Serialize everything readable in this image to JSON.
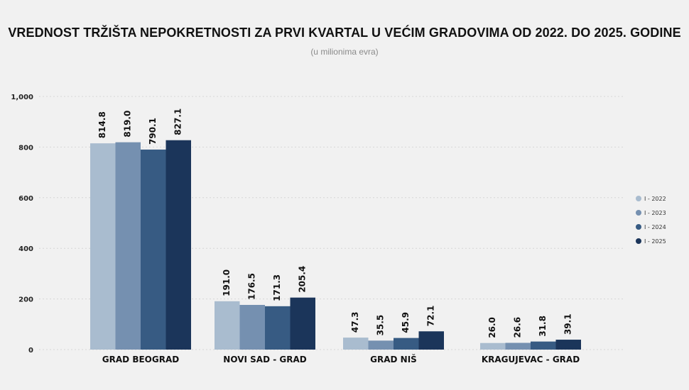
{
  "chart_data": {
    "type": "bar",
    "title": "VREDNOST TRŽIŠTA NEPOKRETNOSTI ZA PRVI KVARTAL U VEĆIM GRADOVIMA OD 2022. DO 2025. GODINE",
    "subtitle": "(u milionima evra)",
    "categories": [
      "GRAD BEOGRAD",
      "NOVI SAD - GRAD",
      "GRAD NIŠ",
      "KRAGUJEVAC - GRAD"
    ],
    "series": [
      {
        "name": "I - 2022",
        "color": "#a9bccf",
        "values": [
          814.8,
          191.0,
          47.3,
          26.0
        ],
        "labels": [
          "814.8",
          "191.0",
          "47.3",
          "26.0"
        ]
      },
      {
        "name": "I - 2023",
        "color": "#7590b0",
        "values": [
          819.0,
          176.5,
          35.5,
          26.6
        ],
        "labels": [
          "819.0",
          "176.5",
          "35.5",
          "26.6"
        ]
      },
      {
        "name": "I - 2024",
        "color": "#375b83",
        "values": [
          790.1,
          171.3,
          45.9,
          31.8
        ],
        "labels": [
          "790.1",
          "171.3",
          "45.9",
          "31.8"
        ]
      },
      {
        "name": "I - 2025",
        "color": "#1b355a",
        "values": [
          827.1,
          205.4,
          72.1,
          39.1
        ],
        "labels": [
          "827.1",
          "205.4",
          "72.1",
          "39.1"
        ]
      }
    ],
    "ylim": [
      0,
      1000
    ],
    "yticks": [
      "0",
      "200",
      "400",
      "600",
      "800",
      "1,000"
    ],
    "ytick_values": [
      0,
      200,
      400,
      600,
      800,
      1000
    ],
    "grid": true,
    "legend_position": "right"
  }
}
